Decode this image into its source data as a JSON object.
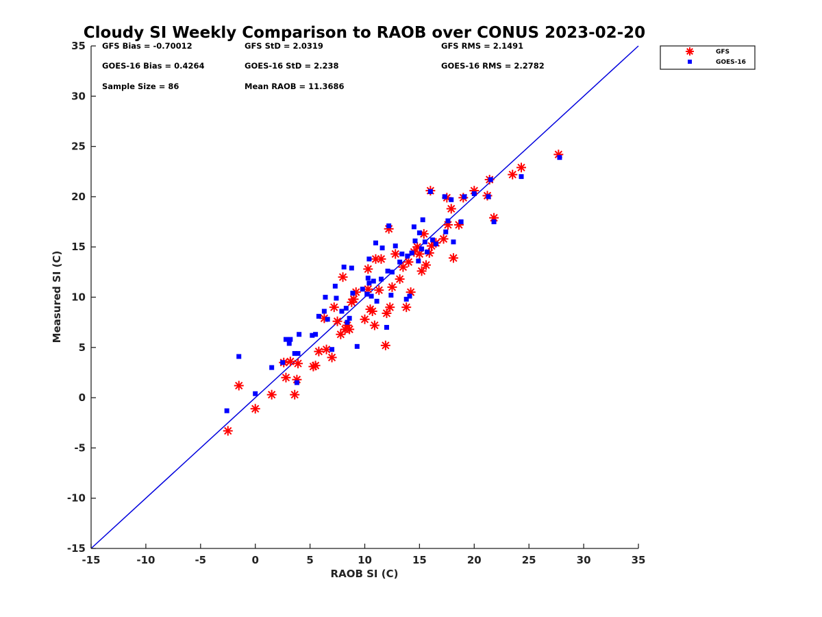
{
  "colors": {
    "gfs": "#ff0000",
    "goes": "#0000ff",
    "line": "#0000dd",
    "axis": "#222222"
  },
  "stats": {
    "gfs_bias": "GFS Bias = -0.70012",
    "gfs_std": "GFS StD = 2.0319",
    "gfs_rms": "GFS RMS = 2.1491",
    "goes_bias": "GOES-16 Bias = 0.4264",
    "goes_std": "GOES-16 StD = 2.238",
    "goes_rms": "GOES-16 RMS = 2.2782",
    "sample_size": "Sample Size = 86",
    "mean_raob": "Mean RAOB = 11.3686"
  },
  "chart_data": {
    "type": "scatter",
    "title": "Cloudy SI Weekly Comparison to RAOB over CONUS 2023-02-20",
    "xlabel": "RAOB SI (C)",
    "ylabel": "Measured SI (C)",
    "xlim": [
      -15,
      35
    ],
    "ylim": [
      -15,
      35
    ],
    "xticks": [
      -15,
      -10,
      -5,
      0,
      5,
      10,
      15,
      20,
      25,
      30,
      35
    ],
    "yticks": [
      -15,
      -10,
      -5,
      0,
      5,
      10,
      15,
      20,
      25,
      30,
      35
    ],
    "grid": false,
    "legend_position": "outside top-right",
    "reference_line": {
      "name": "1:1 line",
      "points": [
        [
          -15,
          -15
        ],
        [
          35,
          35
        ]
      ]
    },
    "series": [
      {
        "name": "GFS",
        "marker": "asterisk",
        "color": "#ff0000",
        "points": [
          [
            -2.5,
            -3.3
          ],
          [
            -1.5,
            1.2
          ],
          [
            0.0,
            -1.1
          ],
          [
            1.5,
            0.3
          ],
          [
            3.6,
            0.3
          ],
          [
            2.6,
            3.5
          ],
          [
            2.8,
            2.0
          ],
          [
            3.2,
            3.6
          ],
          [
            3.9,
            3.4
          ],
          [
            3.8,
            1.8
          ],
          [
            5.3,
            3.1
          ],
          [
            5.5,
            3.2
          ],
          [
            5.8,
            4.6
          ],
          [
            6.3,
            7.9
          ],
          [
            6.5,
            4.8
          ],
          [
            7.0,
            4.0
          ],
          [
            7.2,
            9.0
          ],
          [
            7.5,
            7.6
          ],
          [
            7.8,
            6.3
          ],
          [
            8.0,
            12.0
          ],
          [
            8.2,
            6.8
          ],
          [
            8.4,
            7.2
          ],
          [
            8.6,
            6.8
          ],
          [
            8.8,
            9.5
          ],
          [
            9.0,
            9.8
          ],
          [
            9.2,
            10.5
          ],
          [
            10.0,
            7.8
          ],
          [
            10.3,
            10.8
          ],
          [
            10.3,
            12.8
          ],
          [
            10.5,
            8.8
          ],
          [
            10.7,
            8.6
          ],
          [
            10.9,
            7.2
          ],
          [
            11.0,
            13.8
          ],
          [
            11.3,
            10.7
          ],
          [
            11.5,
            13.8
          ],
          [
            11.9,
            5.2
          ],
          [
            12.0,
            8.4
          ],
          [
            12.2,
            16.8
          ],
          [
            12.3,
            9.0
          ],
          [
            12.5,
            11.0
          ],
          [
            12.8,
            14.3
          ],
          [
            13.2,
            11.8
          ],
          [
            13.5,
            13.0
          ],
          [
            13.8,
            9.0
          ],
          [
            14.0,
            13.5
          ],
          [
            14.2,
            10.5
          ],
          [
            14.5,
            14.5
          ],
          [
            14.8,
            15.0
          ],
          [
            15.0,
            14.3
          ],
          [
            15.2,
            12.6
          ],
          [
            15.4,
            16.3
          ],
          [
            15.6,
            13.2
          ],
          [
            15.9,
            14.4
          ],
          [
            16.0,
            20.6
          ],
          [
            16.1,
            15.1
          ],
          [
            16.5,
            15.4
          ],
          [
            17.2,
            15.8
          ],
          [
            17.5,
            19.9
          ],
          [
            17.6,
            17.2
          ],
          [
            17.9,
            18.8
          ],
          [
            18.1,
            13.9
          ],
          [
            18.6,
            17.2
          ],
          [
            19.0,
            19.9
          ],
          [
            20.0,
            20.6
          ],
          [
            21.2,
            20.1
          ],
          [
            21.4,
            21.7
          ],
          [
            21.8,
            17.9
          ],
          [
            23.5,
            22.2
          ],
          [
            24.3,
            22.9
          ],
          [
            27.7,
            24.2
          ]
        ]
      },
      {
        "name": "GOES-16",
        "marker": "square",
        "color": "#0000ff",
        "points": [
          [
            -2.6,
            -1.3
          ],
          [
            -1.5,
            4.1
          ],
          [
            0.0,
            0.4
          ],
          [
            1.5,
            3.0
          ],
          [
            2.5,
            3.5
          ],
          [
            2.8,
            5.8
          ],
          [
            3.1,
            5.4
          ],
          [
            3.2,
            5.8
          ],
          [
            3.6,
            4.4
          ],
          [
            3.8,
            1.5
          ],
          [
            3.9,
            4.4
          ],
          [
            4.0,
            6.3
          ],
          [
            5.2,
            6.2
          ],
          [
            5.5,
            6.3
          ],
          [
            5.8,
            8.1
          ],
          [
            6.3,
            8.6
          ],
          [
            6.4,
            10.0
          ],
          [
            6.6,
            7.8
          ],
          [
            7.0,
            4.8
          ],
          [
            7.3,
            11.1
          ],
          [
            7.4,
            9.9
          ],
          [
            7.9,
            8.6
          ],
          [
            8.1,
            13.0
          ],
          [
            8.3,
            8.9
          ],
          [
            8.4,
            7.5
          ],
          [
            8.6,
            7.9
          ],
          [
            8.8,
            12.9
          ],
          [
            8.9,
            10.4
          ],
          [
            9.3,
            5.1
          ],
          [
            9.8,
            10.8
          ],
          [
            10.2,
            10.3
          ],
          [
            10.3,
            11.9
          ],
          [
            10.4,
            13.8
          ],
          [
            10.4,
            11.4
          ],
          [
            10.6,
            10.1
          ],
          [
            10.8,
            11.6
          ],
          [
            11.0,
            15.4
          ],
          [
            11.1,
            9.6
          ],
          [
            11.5,
            11.8
          ],
          [
            11.6,
            14.9
          ],
          [
            12.0,
            7.0
          ],
          [
            12.1,
            12.6
          ],
          [
            12.2,
            17.1
          ],
          [
            12.4,
            10.2
          ],
          [
            12.5,
            12.5
          ],
          [
            12.8,
            15.1
          ],
          [
            13.2,
            13.5
          ],
          [
            13.4,
            14.3
          ],
          [
            13.8,
            9.8
          ],
          [
            13.9,
            14.1
          ],
          [
            14.1,
            10.1
          ],
          [
            14.3,
            14.4
          ],
          [
            14.5,
            17.0
          ],
          [
            14.6,
            15.6
          ],
          [
            14.9,
            13.6
          ],
          [
            15.0,
            16.4
          ],
          [
            15.2,
            14.8
          ],
          [
            15.3,
            17.7
          ],
          [
            15.5,
            15.5
          ],
          [
            15.7,
            14.5
          ],
          [
            16.0,
            20.5
          ],
          [
            16.2,
            15.7
          ],
          [
            16.5,
            15.3
          ],
          [
            17.3,
            20.0
          ],
          [
            17.4,
            16.5
          ],
          [
            17.6,
            17.6
          ],
          [
            17.9,
            19.7
          ],
          [
            18.1,
            15.5
          ],
          [
            18.8,
            17.5
          ],
          [
            19.1,
            20.0
          ],
          [
            20.0,
            20.3
          ],
          [
            21.3,
            20.0
          ],
          [
            21.5,
            21.7
          ],
          [
            21.8,
            17.5
          ],
          [
            24.3,
            22.0
          ],
          [
            27.8,
            23.9
          ]
        ]
      }
    ]
  }
}
